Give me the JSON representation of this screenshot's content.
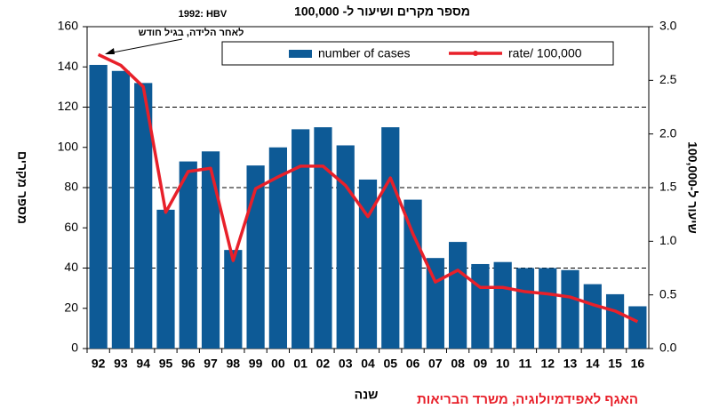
{
  "chart_data": {
    "type": "bar_line",
    "title": "מספר מקרים ושיעור ל- 100,000",
    "annotation": [
      "1992: HBV",
      "לאחר הלידה, בגיל חודש"
    ],
    "source": "האגף לאפידמיולוגיה, משרד הבריאות",
    "xlabel": "שנה",
    "ylabel": "מספר מקרים",
    "y2label": "שיעור ל-100,000",
    "categories": [
      "92",
      "93",
      "94",
      "95",
      "96",
      "97",
      "98",
      "99",
      "00",
      "01",
      "02",
      "03",
      "04",
      "05",
      "06",
      "07",
      "08",
      "09",
      "10",
      "11",
      "12",
      "13",
      "14",
      "15",
      "16"
    ],
    "series": [
      {
        "name": "number of cases",
        "color": "#0d5a96",
        "type": "bar",
        "values": [
          141,
          138,
          132,
          69,
          93,
          98,
          49,
          91,
          100,
          109,
          110,
          101,
          84,
          110,
          74,
          45,
          53,
          42,
          43,
          40,
          40,
          39,
          32,
          27,
          21
        ]
      },
      {
        "name": "rate/ 100,000",
        "color": "#e8202a",
        "type": "line",
        "axis": "y2",
        "values": [
          2.74,
          2.64,
          2.44,
          1.27,
          1.65,
          1.68,
          0.82,
          1.49,
          1.6,
          1.7,
          1.7,
          1.52,
          1.23,
          1.59,
          1.07,
          0.62,
          0.73,
          0.57,
          0.57,
          0.53,
          0.51,
          0.48,
          0.41,
          0.35,
          0.25
        ]
      }
    ],
    "ylim": [
      0,
      160
    ],
    "yticks": [
      0,
      20,
      40,
      60,
      80,
      100,
      120,
      140,
      160
    ],
    "y2lim": [
      0,
      3
    ],
    "y2ticks": [
      {
        "value": 0,
        "label": "0.0"
      },
      0.5,
      {
        "value": 1,
        "label": "1.0"
      },
      1.5,
      {
        "value": 2,
        "label": "2.0"
      },
      2.5,
      {
        "value": 3,
        "label": "3.0"
      }
    ],
    "ygrid": [
      40,
      80,
      120
    ]
  }
}
